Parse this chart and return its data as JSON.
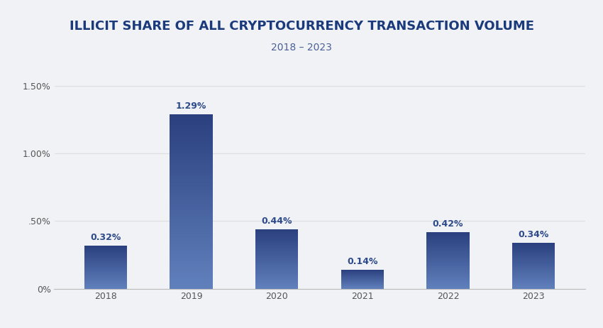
{
  "title": "ILLICIT SHARE OF ALL CRYPTOCURRENCY TRANSACTION VOLUME",
  "subtitle": "2018 – 2023",
  "categories": [
    "2018",
    "2019",
    "2020",
    "2021",
    "2022",
    "2023"
  ],
  "values": [
    0.32,
    1.29,
    0.44,
    0.14,
    0.42,
    0.34
  ],
  "labels": [
    "0.32%",
    "1.29%",
    "0.44%",
    "0.14%",
    "0.42%",
    "0.34%"
  ],
  "bar_color_top": "#2a3f7e",
  "bar_color_bottom": "#6080bc",
  "background_color": "#f0f2f5",
  "title_color": "#1a3a7c",
  "subtitle_color": "#4a6098",
  "label_color": "#2d4a8a",
  "axis_color": "#bbbbbb",
  "tick_color": "#555555",
  "grid_color": "#dddddd",
  "ylim": [
    0,
    1.6
  ],
  "yticks": [
    0.0,
    0.5,
    1.0,
    1.5
  ],
  "ytick_labels": [
    "0%",
    ".50%",
    "1.00%",
    "1.50%"
  ],
  "title_fontsize": 13,
  "subtitle_fontsize": 10,
  "label_fontsize": 9,
  "tick_fontsize": 9
}
